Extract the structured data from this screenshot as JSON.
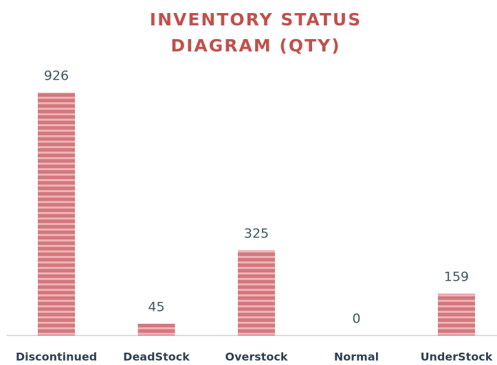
{
  "chart_data": {
    "type": "bar",
    "title": "INVENTORY STATUS DIAGRAM (QTY)",
    "categories": [
      "Discontinued",
      "DeadStock",
      "Overstock",
      "Normal",
      "UnderStock"
    ],
    "values": [
      926,
      45,
      325,
      0,
      159
    ],
    "color": "#d4787d"
  }
}
